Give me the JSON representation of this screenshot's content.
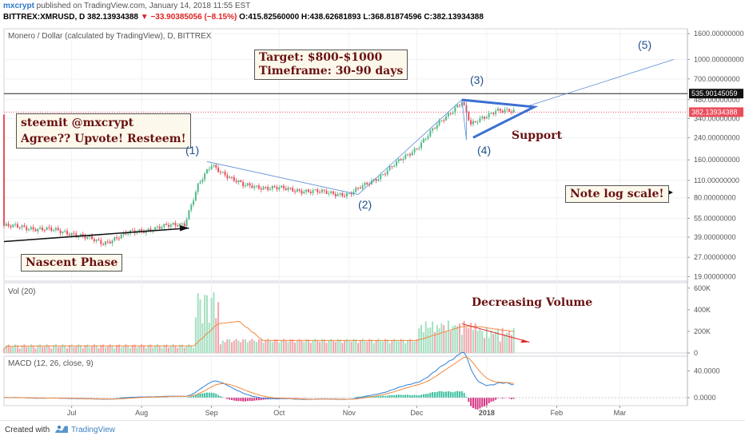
{
  "header": {
    "username": "mxcrypt",
    "published": " published on TradingView.com, January 14, 2018 11:55 EST",
    "symbol_line_prefix": "BITTREX:XMRUSD, D",
    "last": "382.13934388",
    "change": "▼ −33.90385056 (−8.15%)",
    "ohlc": "O:415.82560000 H:438.62681893 L:368.81874596 C:382.13934388"
  },
  "panels": {
    "price_title": "Monero / Dollar (calculated by TradingView), D, BITTREX",
    "vol_title": "Vol (20)",
    "macd_title": "MACD (12, 26, close, 9)"
  },
  "annotations": {
    "target": "Target: $800-$1000",
    "timeframe": "Timeframe: 30-90 days",
    "steemit": "steemit @mxcrypt",
    "agree": "Agree?? Upvote! Resteem!",
    "nascent": "Nascent Phase",
    "support": "Support",
    "log_note": "Note log scale!",
    "dec_volume": "Decreasing Volume",
    "w1": "(1)",
    "w2": "(2)",
    "w3": "(3)",
    "w4": "(4)",
    "w5": "(5)"
  },
  "price_labels": {
    "resistance": "535.90145059",
    "last": "382.13934388"
  },
  "colors": {
    "up": "#53b987",
    "down": "#eb4d5c",
    "accent_blue": "#3b6fd1",
    "annot_red": "#6a1212",
    "vol_up": "#a3dfc0",
    "vol_down": "#f3a5ac"
  },
  "footer": {
    "created_with": "Created with",
    "brand": "TradingView"
  },
  "chart_data": {
    "type": "candlestick",
    "scale": "log",
    "price_axis_ticks": [
      "1600.00000000",
      "1000.00000000",
      "700.00000000",
      "480.00000000",
      "340.00000000",
      "240.00000000",
      "160.00000000",
      "110.00000000",
      "80.00000000",
      "55.00000000",
      "39.00000000",
      "27.00000000",
      "19.00000000"
    ],
    "price_axis_values": [
      1600,
      1000,
      700,
      480,
      340,
      240,
      160,
      110,
      80,
      55,
      39,
      27,
      19
    ],
    "volume_axis_ticks": [
      "600K",
      "400K",
      "200K",
      "0"
    ],
    "volume_axis_values": [
      600000,
      400000,
      200000,
      0
    ],
    "macd_axis_ticks": [
      "40.0000",
      "0.0000"
    ],
    "macd_axis_values": [
      40,
      0
    ],
    "time_axis_labels": [
      "Jul",
      "Aug",
      "Sep",
      "Oct",
      "Nov",
      "Dec",
      "2018",
      "Feb",
      "Mar"
    ],
    "time_axis_dates": [
      "2017-07-01",
      "2017-08-01",
      "2017-09-01",
      "2017-10-01",
      "2017-11-01",
      "2017-12-01",
      "2018-01-01",
      "2018-02-01",
      "2018-03-01"
    ],
    "date_range": [
      "2017-06-01",
      "2018-03-31"
    ],
    "price_key_points": [
      {
        "date": "2017-06-01",
        "close": 48
      },
      {
        "date": "2017-06-20",
        "close": 45
      },
      {
        "date": "2017-07-01",
        "close": 42
      },
      {
        "date": "2017-07-15",
        "close": 35
      },
      {
        "date": "2017-07-26",
        "close": 42
      },
      {
        "date": "2017-08-10",
        "close": 47
      },
      {
        "date": "2017-08-20",
        "close": 50
      },
      {
        "date": "2017-08-26",
        "close": 100
      },
      {
        "date": "2017-09-01",
        "close": 145
      },
      {
        "date": "2017-09-15",
        "close": 100
      },
      {
        "date": "2017-10-01",
        "close": 95
      },
      {
        "date": "2017-10-15",
        "close": 90
      },
      {
        "date": "2017-11-01",
        "close": 85
      },
      {
        "date": "2017-11-15",
        "close": 120
      },
      {
        "date": "2017-12-01",
        "close": 200
      },
      {
        "date": "2017-12-10",
        "close": 300
      },
      {
        "date": "2017-12-21",
        "close": 470
      },
      {
        "date": "2017-12-25",
        "close": 300
      },
      {
        "date": "2018-01-05",
        "close": 400
      },
      {
        "date": "2018-01-13",
        "close": 382
      }
    ],
    "waves": [
      {
        "label": "(1)",
        "date": "2017-08-30",
        "price": 155
      },
      {
        "label": "(2)",
        "date": "2017-11-05",
        "price": 85
      },
      {
        "label": "(3)",
        "date": "2017-12-21",
        "price": 480
      },
      {
        "label": "(4)",
        "date": "2017-12-23",
        "price": 230
      },
      {
        "label": "(5)",
        "date": "2018-03-25",
        "price": 1000
      }
    ],
    "resistance": 535.90145059,
    "last_close": 382.13934388,
    "target_range": [
      800,
      1000
    ]
  }
}
